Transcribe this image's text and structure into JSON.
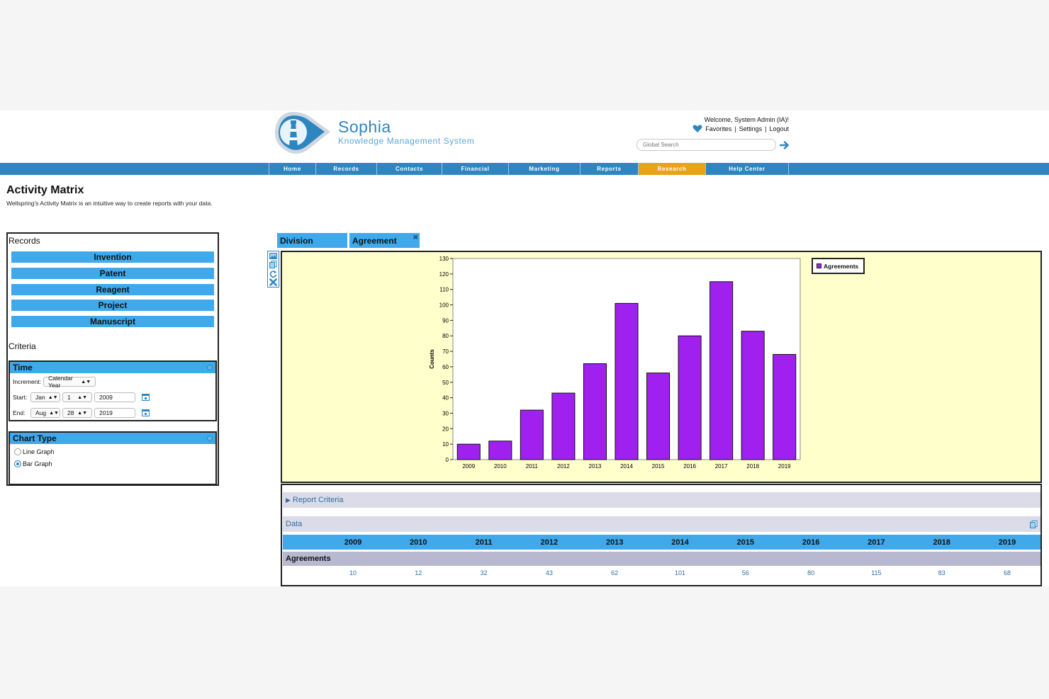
{
  "brand": {
    "name": "Sophia",
    "subtitle": "Knowledge Management System"
  },
  "user": {
    "welcome": "Welcome, System Admin (IA)!",
    "links": [
      "Favorites",
      "Settings",
      "Logout"
    ],
    "separator": "|"
  },
  "search": {
    "placeholder": "Global Search"
  },
  "nav": [
    {
      "label": "Home",
      "active": false
    },
    {
      "label": "Records",
      "active": false
    },
    {
      "label": "Contacts",
      "active": false
    },
    {
      "label": "Financial",
      "active": false
    },
    {
      "label": "Marketing",
      "active": false
    },
    {
      "label": "Reports",
      "active": false
    },
    {
      "label": "Research",
      "active": true
    },
    {
      "label": "Help Center",
      "active": false
    }
  ],
  "page": {
    "title": "Activity Matrix",
    "description": "Wellspring's Activity Matrix is an intuitive way to create reports with your data."
  },
  "left": {
    "records_label": "Records",
    "records": [
      "Invention",
      "Patent",
      "Reagent",
      "Project",
      "Manuscript"
    ],
    "criteria_label": "Criteria",
    "time": {
      "title": "Time",
      "increment_label": "Increment:",
      "increment_value": "Calendar Year",
      "start_label": "Start:",
      "start_month": "Jan",
      "start_day": "1",
      "start_year": "2009",
      "end_label": "End:",
      "end_month": "Aug",
      "end_day": "28",
      "end_year": "2019"
    },
    "chart_type": {
      "title": "Chart Type",
      "options": [
        {
          "label": "Line Graph",
          "selected": false
        },
        {
          "label": "Bar Graph",
          "selected": true
        }
      ]
    }
  },
  "tabs": {
    "division": "Division",
    "agreement": "Agreement",
    "close_glyph": "✖"
  },
  "colors": {
    "accent": "#3fa9ec",
    "nav": "#2e86c1",
    "active_nav": "#e8a317",
    "bar": "#a020f0",
    "chart_bg": "#ffffcc"
  },
  "chart_data": {
    "type": "bar",
    "categories": [
      "2009",
      "2010",
      "2011",
      "2012",
      "2013",
      "2014",
      "2015",
      "2016",
      "2017",
      "2018",
      "2019"
    ],
    "series": [
      {
        "name": "Agreements",
        "values": [
          10,
          12,
          32,
          43,
          62,
          101,
          56,
          80,
          115,
          83,
          68
        ]
      }
    ],
    "ylabel": "Counts",
    "ylim": [
      0,
      130
    ],
    "ytick_step": 10,
    "legend_position": "top-right"
  },
  "data_panel": {
    "report_criteria": "Report Criteria",
    "data_label": "Data",
    "series_label": "Agreements"
  }
}
